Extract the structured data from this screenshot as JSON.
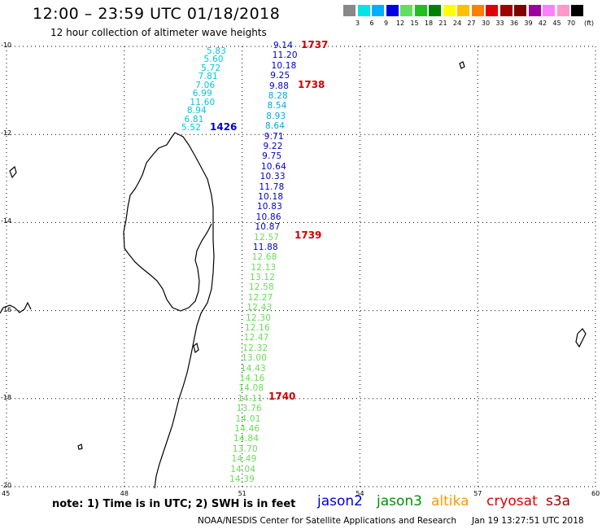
{
  "header": {
    "title": "12:00 – 23:59 UTC 01/18/2018",
    "subtitle": "12 hour collection of altimeter wave heights"
  },
  "colorbar": {
    "colors": [
      "#888888",
      "#00e5e5",
      "#00b0ff",
      "#0000e0",
      "#60e060",
      "#20c020",
      "#008000",
      "#ffff00",
      "#ffc000",
      "#ff8000",
      "#e00000",
      "#a00000",
      "#800000",
      "#a000a0",
      "#ff80ff",
      "#ff99cc",
      "#000000"
    ],
    "labels": [
      "3",
      "6",
      "9",
      "12",
      "15",
      "18",
      "21",
      "24",
      "27",
      "30",
      "33",
      "36",
      "39",
      "42",
      "45",
      "70"
    ],
    "unit": "(ft)"
  },
  "axes": {
    "lon_ticks": [
      {
        "lon": 45,
        "label": "45"
      },
      {
        "lon": 48,
        "label": "48"
      },
      {
        "lon": 51,
        "label": "51"
      },
      {
        "lon": 54,
        "label": "54"
      },
      {
        "lon": 57,
        "label": "57"
      },
      {
        "lon": 60,
        "label": "60"
      }
    ],
    "lat_ticks": [
      {
        "lat": -10,
        "label": "-10"
      },
      {
        "lat": -12,
        "label": "-12"
      },
      {
        "lat": -14,
        "label": "-14"
      },
      {
        "lat": -16,
        "label": "-16"
      },
      {
        "lat": -18,
        "label": "-18"
      },
      {
        "lat": -20,
        "label": "-20"
      }
    ]
  },
  "tracks": {
    "altika": {
      "color": "#00c8d8",
      "values": [
        "5.83",
        "5.60",
        "5.72",
        "7.81",
        "7.06",
        "6.99",
        "11.60",
        "8.94",
        "6.81",
        "5.52"
      ],
      "time_label": "1426"
    },
    "jason2": {
      "values": [
        "9.14",
        "11.20",
        "10.18",
        "9.25",
        "9.88",
        "8.28",
        "8.54",
        "8.93",
        "8.64",
        "9.71",
        "9.22",
        "9.75",
        "10.64",
        "10.33",
        "11.78",
        "10.18",
        "10.83",
        "10.86",
        "10.87",
        "12.57",
        "11.88",
        "12.68",
        "12.13",
        "13.12",
        "12.58",
        "12.27",
        "12.43",
        "12.30",
        "12.16",
        "12.47",
        "12.32",
        "13.00",
        "14.43",
        "14.16",
        "14.08",
        "14.11",
        "13.76",
        "14.01",
        "14.46",
        "14.84",
        "13.70",
        "14.49",
        "14.04",
        "14.39"
      ],
      "time_labels": [
        "1737",
        "1738",
        "1739",
        "1740"
      ]
    }
  },
  "footer": {
    "note": "note:  1) Time is in UTC;  2) SWH is in feet",
    "legend": [
      "jason2",
      "jason3",
      "altika",
      "cryosat",
      "s3a"
    ],
    "credit": "NOAA/NESDIS Center for Satellite Applications and Research",
    "timestamp": "Jan 19 13:27:51 UTC 2018"
  }
}
